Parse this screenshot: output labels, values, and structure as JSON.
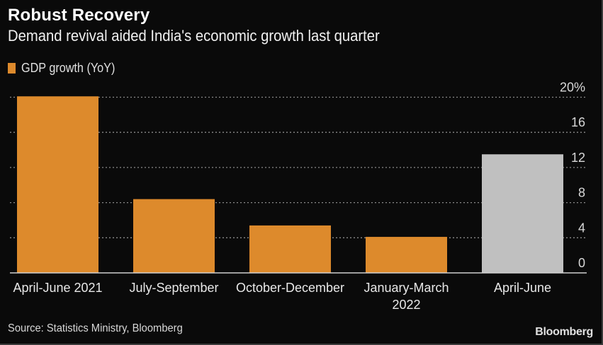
{
  "header": {
    "title": "Robust Recovery",
    "subtitle": "Demand revival aided India's economic growth last quarter"
  },
  "legend": {
    "label": "GDP growth (YoY)",
    "color": "#dd8a2c"
  },
  "footer": {
    "source": "Source: Statistics Ministry, Bloomberg",
    "brand": "Bloomberg"
  },
  "colors": {
    "background": "#0a0a0a",
    "bar_actual": "#dd8a2c",
    "bar_latest": "#c0c0c0",
    "grid": "#8a8a8a",
    "axis": "#d0d0d0"
  },
  "chart_data": {
    "type": "bar",
    "title": "Robust Recovery",
    "subtitle": "Demand revival aided India's economic growth last quarter",
    "categories": [
      [
        "April-June 2021"
      ],
      [
        "July-September"
      ],
      [
        "October-December"
      ],
      [
        "January-March",
        "2022"
      ],
      [
        "April-June"
      ]
    ],
    "series": [
      {
        "name": "GDP growth (YoY)",
        "values": [
          20.1,
          8.4,
          5.4,
          4.1,
          13.5
        ]
      }
    ],
    "bar_colors": [
      "#dd8a2c",
      "#dd8a2c",
      "#dd8a2c",
      "#dd8a2c",
      "#c0c0c0"
    ],
    "xlabel": "",
    "ylabel": "",
    "ylim": [
      0,
      20
    ],
    "yticks": [
      0,
      4,
      8,
      12,
      16,
      20
    ],
    "ytick_labels": [
      "0",
      "4",
      "8",
      "12",
      "16",
      "20%"
    ],
    "y_axis_side": "right",
    "grid": true,
    "grid_style": "dotted",
    "legend_position": "top-left",
    "source": "Source: Statistics Ministry, Bloomberg"
  }
}
